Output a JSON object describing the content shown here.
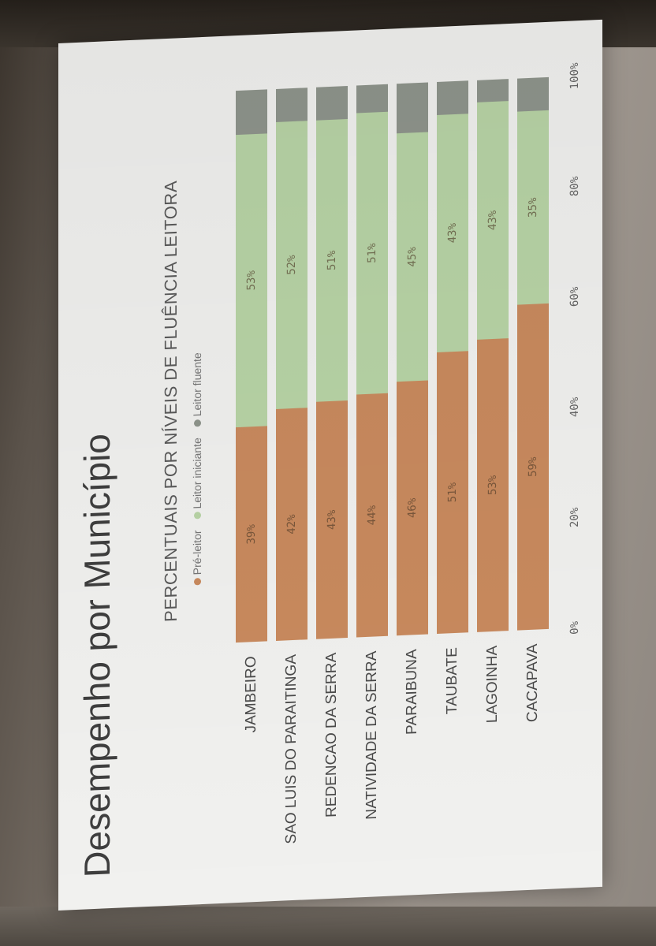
{
  "slide": {
    "title": "Desempenho por Município",
    "subtitle": "PERCENTUAIS POR NÍVEIS DE FLUÊNCIA LEITORA"
  },
  "chart_data": {
    "type": "bar",
    "orientation": "horizontal",
    "stacked": true,
    "categories": [
      "JAMBEIRO",
      "SAO LUIS DO PARAITINGA",
      "REDENCAO DA SERRA",
      "NATIVIDADE DA SERRA",
      "PARAIBUNA",
      "TAUBATE",
      "LAGOINHA",
      "CACAPAVA"
    ],
    "series": [
      {
        "name": "Pré-leitor",
        "color": "#c98a5e",
        "values": [
          39,
          42,
          43,
          44,
          46,
          51,
          53,
          59
        ]
      },
      {
        "name": "Leitor iniciante",
        "color": "#b8d4a6",
        "values": [
          53,
          52,
          51,
          51,
          45,
          43,
          43,
          35
        ]
      },
      {
        "name": "Leitor fluente",
        "color": "#8f958c",
        "values": [
          8,
          6,
          6,
          5,
          9,
          6,
          4,
          6
        ]
      }
    ],
    "data_labels": {
      "Pré-leitor": [
        "39%",
        "42%",
        "43%",
        "44%",
        "46%",
        "51%",
        "53%",
        "59%"
      ],
      "Leitor iniciante": [
        "53%",
        "52%",
        "51%",
        "51%",
        "45%",
        "43%",
        "43%",
        "35%"
      ]
    },
    "x_ticks": [
      "0%",
      "20%",
      "40%",
      "60%",
      "80%",
      "100%"
    ],
    "xlim": [
      0,
      100
    ],
    "legend_position": "top",
    "grid": false
  }
}
